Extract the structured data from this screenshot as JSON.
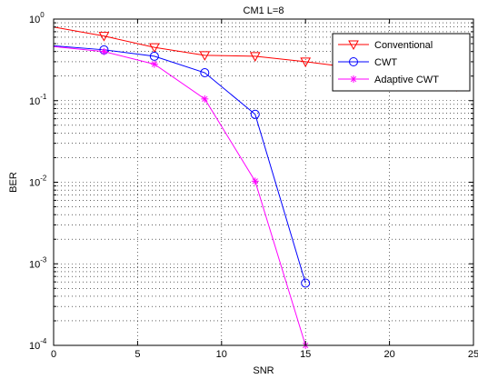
{
  "chart_data": {
    "type": "line",
    "title": "CM1 L=8",
    "xlabel": "SNR",
    "ylabel": "BER",
    "xlim": [
      0,
      25
    ],
    "ylim": [
      0.0001,
      1
    ],
    "yscale": "log",
    "grid": true,
    "legend_position": "top-right",
    "x_ticks": [
      "0",
      "5",
      "10",
      "15",
      "20",
      "25"
    ],
    "y_ticks": [
      {
        "base": "10",
        "exp": "0",
        "value": 1
      },
      {
        "base": "10",
        "exp": "-1",
        "value": 0.1
      },
      {
        "base": "10",
        "exp": "-2",
        "value": 0.01
      },
      {
        "base": "10",
        "exp": "-3",
        "value": 0.001
      },
      {
        "base": "10",
        "exp": "-4",
        "value": 0.0001
      }
    ],
    "series": [
      {
        "name": "Conventional",
        "color": "#ff0000",
        "marker": "triangle-down",
        "x": [
          0,
          3,
          6,
          9,
          12,
          15,
          18,
          21,
          24
        ],
        "y": [
          0.8,
          0.62,
          0.45,
          0.36,
          0.35,
          0.3,
          0.25,
          0.22,
          0.15
        ],
        "marker_x": [
          3,
          6,
          9,
          12,
          15,
          24
        ]
      },
      {
        "name": "CWT",
        "color": "#0000ff",
        "marker": "circle",
        "x": [
          0,
          3,
          6,
          9,
          12,
          15
        ],
        "y": [
          0.47,
          0.42,
          0.35,
          0.22,
          0.068,
          0.00058
        ],
        "marker_x": [
          3,
          6,
          9,
          12,
          15
        ]
      },
      {
        "name": "Adaptive CWT",
        "color": "#ff00ff",
        "marker": "star",
        "x": [
          0,
          3,
          6,
          9,
          12,
          15
        ],
        "y": [
          0.46,
          0.4,
          0.28,
          0.105,
          0.0103,
          0.0001
        ],
        "marker_x": [
          3,
          6,
          9,
          12,
          15
        ]
      }
    ]
  }
}
